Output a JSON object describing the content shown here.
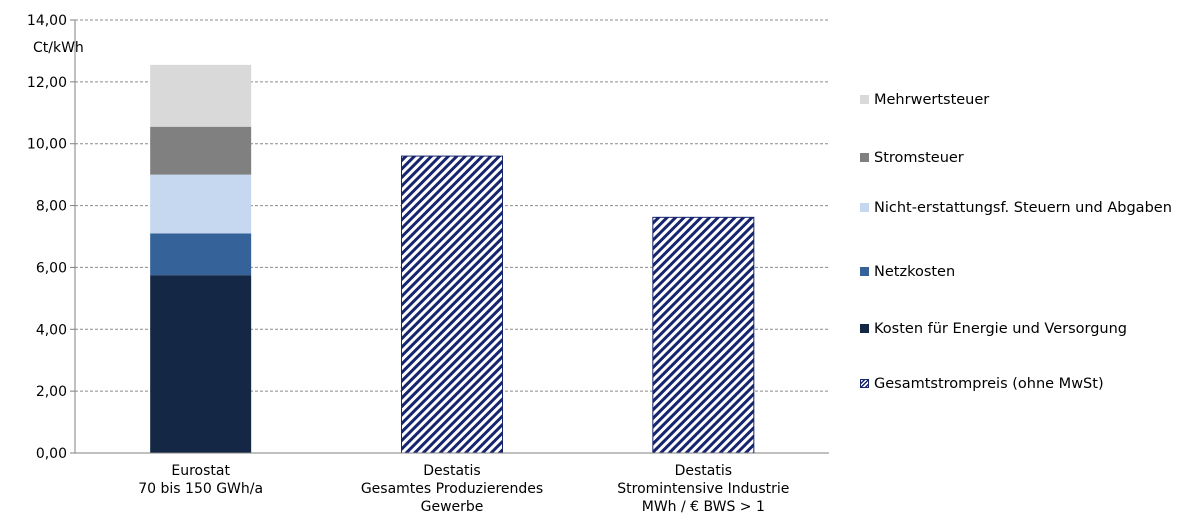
{
  "chart_data": {
    "type": "bar",
    "stacked": true,
    "ylabel": "Ct/kWh",
    "ylim": [
      0,
      14
    ],
    "ytick_step": 2,
    "ytick_labels": [
      "0,00",
      "2,00",
      "4,00",
      "6,00",
      "8,00",
      "10,00",
      "12,00",
      "14,00"
    ],
    "grid": true,
    "legend_position": "right",
    "categories": [
      [
        "Eurostat",
        "70 bis 150 GWh/a"
      ],
      [
        "Destatis",
        "Gesamtes Produzierendes",
        "Gewerbe"
      ],
      [
        "Destatis",
        "Stromintensive Industrie",
        "MWh / € BWS > 1"
      ]
    ],
    "series": [
      {
        "name": "Kosten für Energie und Versorgung",
        "color": "#142846",
        "values": [
          5.75,
          null,
          null
        ]
      },
      {
        "name": "Netzkosten",
        "color": "#356399",
        "values": [
          1.35,
          null,
          null
        ]
      },
      {
        "name": "Nicht-erstattungsf. Steuern und Abgaben",
        "color": "#c6d8f0",
        "values": [
          1.9,
          null,
          null
        ]
      },
      {
        "name": "Stromsteuer",
        "color": "#808080",
        "values": [
          1.55,
          null,
          null
        ]
      },
      {
        "name": "Mehrwertsteuer",
        "color": "#d9d9d9",
        "values": [
          2.0,
          null,
          null
        ]
      },
      {
        "name": "Gesamtstrompreis (ohne MwSt)",
        "color": "#16256e",
        "pattern": "hatch",
        "values": [
          null,
          9.6,
          7.62
        ]
      }
    ],
    "legend_order": [
      "Mehrwertsteuer",
      "Stromsteuer",
      "Nicht-erstattungsf. Steuern und Abgaben",
      "Netzkosten",
      "Kosten für Energie und Versorgung",
      "Gesamtstrompreis (ohne MwSt)"
    ]
  }
}
